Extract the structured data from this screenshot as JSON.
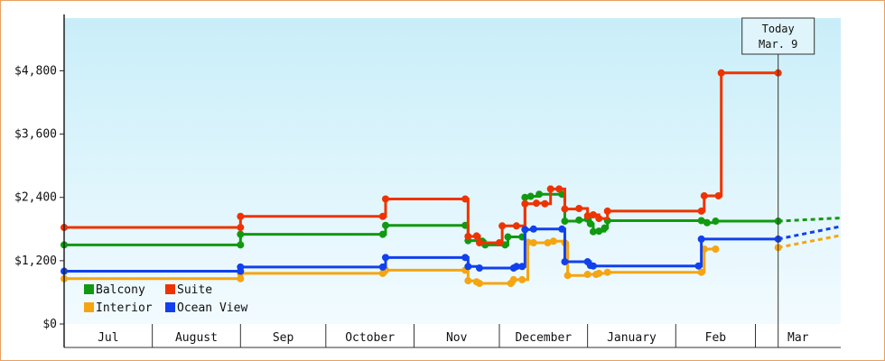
{
  "chart_data": {
    "type": "line",
    "y_axis": {
      "ylim": [
        0,
        5800
      ],
      "ticks": [
        {
          "value": 0,
          "label": "$0"
        },
        {
          "value": 1200,
          "label": "$1,200"
        },
        {
          "value": 2400,
          "label": "$2,400"
        },
        {
          "value": 3600,
          "label": "$3,600"
        },
        {
          "value": 4800,
          "label": "$4,800"
        }
      ],
      "grid": false
    },
    "x_axis": {
      "xlim": [
        "2024-07-01",
        "2025-03-31"
      ],
      "months": [
        {
          "label": "Jul",
          "start": "2024-07-01",
          "end": "2024-08-01"
        },
        {
          "label": "August",
          "start": "2024-08-01",
          "end": "2024-09-01"
        },
        {
          "label": "Sep",
          "start": "2024-09-01",
          "end": "2024-10-01"
        },
        {
          "label": "October",
          "start": "2024-10-01",
          "end": "2024-11-01"
        },
        {
          "label": "Nov",
          "start": "2024-11-01",
          "end": "2024-12-01"
        },
        {
          "label": "December",
          "start": "2024-12-01",
          "end": "2025-01-01"
        },
        {
          "label": "January",
          "start": "2025-01-01",
          "end": "2025-02-01"
        },
        {
          "label": "Feb",
          "start": "2025-02-01",
          "end": "2025-03-01"
        },
        {
          "label": "Mar",
          "start": "2025-03-01",
          "end": "2025-03-31"
        }
      ]
    },
    "today": {
      "label_line1": "Today",
      "label_line2": "Mar. 9",
      "date": "2025-03-09"
    },
    "legend": {
      "placement": "bottom-left"
    },
    "series": [
      {
        "name": "Balcony",
        "color": "#119911",
        "points": [
          [
            "2024-07-01",
            1500
          ],
          [
            "2024-09-01",
            1500
          ],
          [
            "2024-09-01",
            1700
          ],
          [
            "2024-10-21",
            1700
          ],
          [
            "2024-10-22",
            1870
          ],
          [
            "2024-11-19",
            1870
          ],
          [
            "2024-11-20",
            1580
          ],
          [
            "2024-11-25",
            1570
          ],
          [
            "2024-11-26",
            1500
          ],
          [
            "2024-12-03",
            1500
          ],
          [
            "2024-12-04",
            1650
          ],
          [
            "2024-12-09",
            1650
          ],
          [
            "2024-12-10",
            2400
          ],
          [
            "2024-12-12",
            2420
          ],
          [
            "2024-12-15",
            2460
          ],
          [
            "2024-12-23",
            2460
          ],
          [
            "2024-12-24",
            1950
          ],
          [
            "2024-12-29",
            1970
          ],
          [
            "2025-01-01",
            1990
          ],
          [
            "2025-01-02",
            1900
          ],
          [
            "2025-01-03",
            1750
          ],
          [
            "2025-01-05",
            1760
          ],
          [
            "2025-01-07",
            1820
          ],
          [
            "2025-01-08",
            1960
          ],
          [
            "2025-02-10",
            1960
          ],
          [
            "2025-02-12",
            1920
          ],
          [
            "2025-02-15",
            1950
          ],
          [
            "2025-03-09",
            1950
          ]
        ],
        "projection": [
          [
            "2025-03-09",
            1950
          ],
          [
            "2025-03-31",
            2010
          ]
        ]
      },
      {
        "name": "Suite",
        "color": "#ee3300",
        "points": [
          [
            "2024-07-01",
            1830
          ],
          [
            "2024-09-01",
            1830
          ],
          [
            "2024-09-01",
            2040
          ],
          [
            "2024-10-21",
            2040
          ],
          [
            "2024-10-22",
            2370
          ],
          [
            "2024-11-19",
            2370
          ],
          [
            "2024-11-20",
            1660
          ],
          [
            "2024-11-23",
            1670
          ],
          [
            "2024-11-24",
            1540
          ],
          [
            "2024-12-01",
            1540
          ],
          [
            "2024-12-02",
            1860
          ],
          [
            "2024-12-07",
            1860
          ],
          [
            "2024-12-10",
            2280
          ],
          [
            "2024-12-14",
            2290
          ],
          [
            "2024-12-17",
            2280
          ],
          [
            "2024-12-19",
            2560
          ],
          [
            "2024-12-22",
            2560
          ],
          [
            "2024-12-24",
            2180
          ],
          [
            "2024-12-29",
            2190
          ],
          [
            "2025-01-01",
            2050
          ],
          [
            "2025-01-03",
            2070
          ],
          [
            "2025-01-05",
            2000
          ],
          [
            "2025-01-08",
            2140
          ],
          [
            "2025-02-10",
            2140
          ],
          [
            "2025-02-11",
            2430
          ],
          [
            "2025-02-16",
            2430
          ],
          [
            "2025-02-17",
            4760
          ],
          [
            "2025-03-09",
            4760
          ]
        ],
        "projection": []
      },
      {
        "name": "Interior",
        "color": "#f5a511",
        "points": [
          [
            "2024-07-01",
            860
          ],
          [
            "2024-09-01",
            860
          ],
          [
            "2024-09-01",
            960
          ],
          [
            "2024-10-21",
            960
          ],
          [
            "2024-10-22",
            1020
          ],
          [
            "2024-11-19",
            1020
          ],
          [
            "2024-11-20",
            820
          ],
          [
            "2024-11-23",
            800
          ],
          [
            "2024-11-24",
            770
          ],
          [
            "2024-12-05",
            770
          ],
          [
            "2024-12-06",
            840
          ],
          [
            "2024-12-09",
            840
          ],
          [
            "2024-12-11",
            1550
          ],
          [
            "2024-12-13",
            1540
          ],
          [
            "2024-12-18",
            1540
          ],
          [
            "2024-12-20",
            1570
          ],
          [
            "2024-12-24",
            1540
          ],
          [
            "2024-12-25",
            920
          ],
          [
            "2025-01-01",
            940
          ],
          [
            "2025-01-04",
            940
          ],
          [
            "2025-01-05",
            960
          ],
          [
            "2025-01-08",
            980
          ],
          [
            "2025-02-10",
            980
          ],
          [
            "2025-02-11",
            1420
          ],
          [
            "2025-02-15",
            1420
          ]
        ],
        "points_current": [
          [
            "2025-03-09",
            1450
          ]
        ],
        "projection": [
          [
            "2025-03-09",
            1450
          ],
          [
            "2025-03-31",
            1680
          ]
        ]
      },
      {
        "name": "Ocean View",
        "color": "#1140ee",
        "points": [
          [
            "2024-07-01",
            1000
          ],
          [
            "2024-09-01",
            1000
          ],
          [
            "2024-09-01",
            1080
          ],
          [
            "2024-10-21",
            1080
          ],
          [
            "2024-10-22",
            1260
          ],
          [
            "2024-11-19",
            1260
          ],
          [
            "2024-11-20",
            1090
          ],
          [
            "2024-11-24",
            1060
          ],
          [
            "2024-12-06",
            1060
          ],
          [
            "2024-12-07",
            1090
          ],
          [
            "2024-12-09",
            1090
          ],
          [
            "2024-12-10",
            1790
          ],
          [
            "2024-12-13",
            1800
          ],
          [
            "2024-12-23",
            1800
          ],
          [
            "2024-12-24",
            1180
          ],
          [
            "2025-01-01",
            1180
          ],
          [
            "2025-01-02",
            1110
          ],
          [
            "2025-01-03",
            1100
          ],
          [
            "2025-02-09",
            1100
          ],
          [
            "2025-02-10",
            1610
          ],
          [
            "2025-03-09",
            1610
          ]
        ],
        "projection": [
          [
            "2025-03-09",
            1610
          ],
          [
            "2025-03-31",
            1850
          ]
        ]
      }
    ]
  }
}
